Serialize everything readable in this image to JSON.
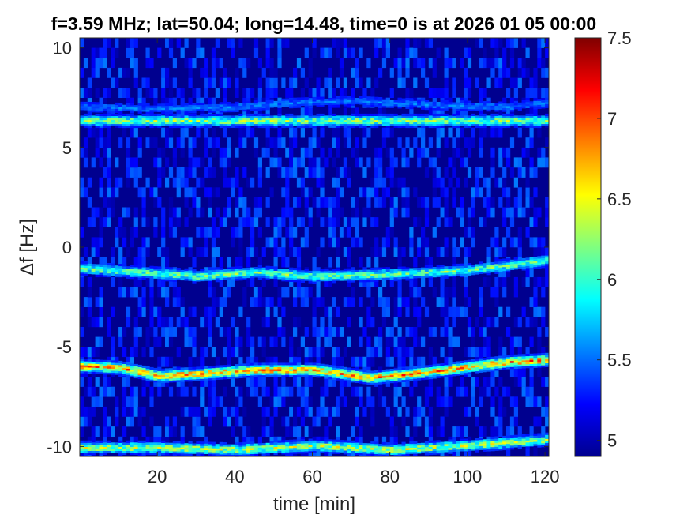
{
  "chart_data": {
    "type": "heatmap",
    "title": "f=3.59 MHz;  lat=50.04; long=14.48, time=0 is at 2026 01 05 00:00",
    "xlabel": "time [min]",
    "ylabel": "Δf [Hz]",
    "xlim": [
      0,
      121
    ],
    "ylim": [
      -10.5,
      10.5
    ],
    "x_ticks": [
      20,
      40,
      60,
      80,
      100,
      120
    ],
    "y_ticks": [
      10,
      5,
      0,
      -5,
      -10
    ],
    "colorbar": {
      "min": 4.9,
      "max": 7.5,
      "ticks": [
        7.5,
        7,
        6.5,
        6,
        5.5,
        5
      ],
      "colormap": "jet"
    },
    "background_value": 5.0,
    "traces": [
      {
        "name": "",
        "points": [
          [
            0,
            6.3
          ],
          [
            20,
            6.3
          ],
          [
            40,
            6.3
          ],
          [
            60,
            6.3
          ],
          [
            80,
            6.3
          ],
          [
            100,
            6.3
          ],
          [
            120,
            6.3
          ]
        ],
        "peak": 6.4
      },
      {
        "name": "",
        "points": [
          [
            0,
            7.0
          ],
          [
            20,
            6.9
          ],
          [
            40,
            7.0
          ],
          [
            55,
            7.2
          ],
          [
            70,
            7.3
          ],
          [
            90,
            7.1
          ],
          [
            110,
            7.0
          ],
          [
            120,
            7.2
          ]
        ],
        "peak": 5.6
      },
      {
        "name": "",
        "points": [
          [
            0,
            -1.1
          ],
          [
            15,
            -1.3
          ],
          [
            30,
            -1.5
          ],
          [
            45,
            -1.3
          ],
          [
            60,
            -1.5
          ],
          [
            80,
            -1.4
          ],
          [
            100,
            -1.2
          ],
          [
            120,
            -0.7
          ]
        ],
        "peak": 6.3
      },
      {
        "name": "",
        "points": [
          [
            0,
            -6.0
          ],
          [
            10,
            -6.1
          ],
          [
            20,
            -6.5
          ],
          [
            30,
            -6.4
          ],
          [
            45,
            -6.2
          ],
          [
            60,
            -6.2
          ],
          [
            75,
            -6.6
          ],
          [
            90,
            -6.3
          ],
          [
            110,
            -5.8
          ],
          [
            120,
            -5.7
          ]
        ],
        "peak": 7.0
      },
      {
        "name": "",
        "points": [
          [
            0,
            -10.1
          ],
          [
            20,
            -10.1
          ],
          [
            40,
            -10.2
          ],
          [
            60,
            -10.0
          ],
          [
            80,
            -10.2
          ],
          [
            100,
            -10.0
          ],
          [
            120,
            -9.7
          ]
        ],
        "peak": 6.5
      }
    ]
  }
}
